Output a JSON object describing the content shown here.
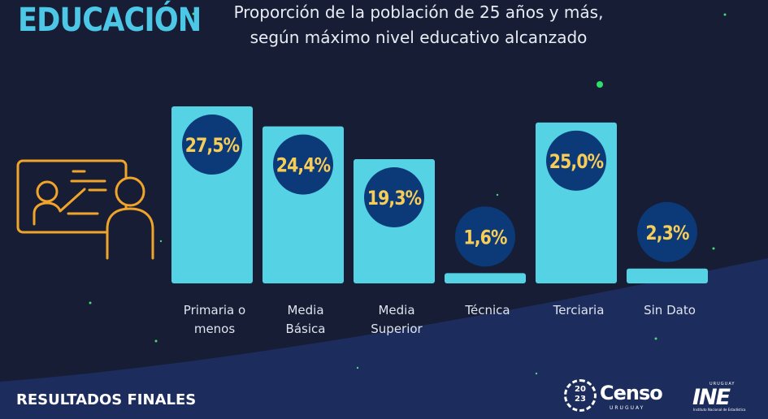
{
  "heading": "EDUCACIÓN",
  "footer": {
    "left_text": "RESULTADOS FINALES",
    "censo_logo": {
      "name": "Censo",
      "year_top": "20",
      "year_bottom": "23",
      "country": "URUGUAY"
    },
    "ine_logo": {
      "name": "INE",
      "country": "URUGUAY",
      "subtitle": "Instituto Nacional de Estadística"
    }
  },
  "colors": {
    "background": "#161d35",
    "bar": "#55d2e4",
    "badge": "#0c3a78",
    "badge_text": "#f7cd58",
    "heading": "#4cc7e6",
    "accent_dot": "#2ee06a",
    "icon": "#f0a52a"
  },
  "icon": "teacher-presentation-icon",
  "chart_data": {
    "type": "bar",
    "title": "Proporción de la población de 25 años y más, según máximo nivel educativo alcanzado",
    "categories": [
      [
        "Primaria o",
        "menos"
      ],
      [
        "Media",
        "Básica"
      ],
      [
        "Media",
        "Superior"
      ],
      [
        "Técnica"
      ],
      [
        "Terciaria"
      ],
      [
        "Sin Dato"
      ]
    ],
    "values": [
      27.5,
      24.4,
      19.3,
      1.6,
      25.0,
      2.3
    ],
    "value_labels": [
      "27,5%",
      "24,4%",
      "19,3%",
      "1,6%",
      "25,0%",
      "2,3%"
    ],
    "xlabel": "",
    "ylabel": "",
    "ylim": [
      0,
      27.5
    ],
    "grid": false,
    "legend": "none"
  }
}
